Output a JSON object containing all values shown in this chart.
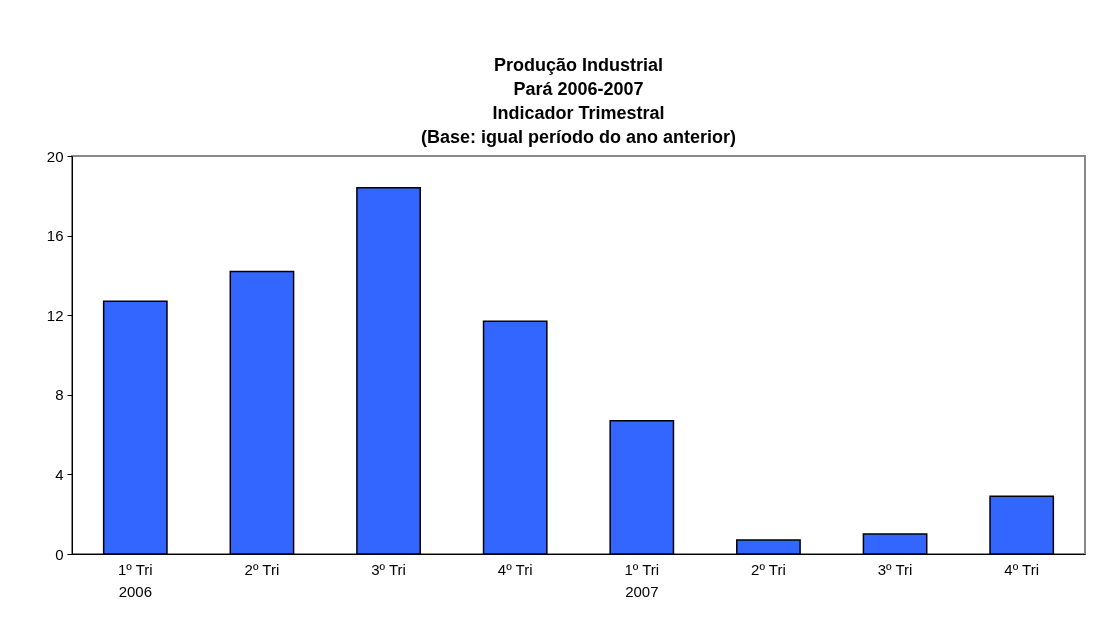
{
  "chart_data": {
    "type": "bar",
    "title": [
      "Produção Industrial",
      "Pará 2006-2007",
      "Indicador Trimestral",
      "(Base: igual período do ano anterior)"
    ],
    "categories": [
      "1º Tri\n2006",
      "2º Tri",
      "3º Tri",
      "4º Tri",
      "1º Tri\n2007",
      "2º Tri",
      "3º Tri",
      "4º Tri"
    ],
    "values": [
      12.7,
      14.2,
      18.4,
      11.7,
      6.7,
      0.7,
      1.0,
      2.9
    ],
    "color": "#3366ff",
    "ylim": [
      0,
      20
    ],
    "yticks": [
      0,
      4,
      8,
      12,
      16,
      20
    ],
    "grid": false
  }
}
